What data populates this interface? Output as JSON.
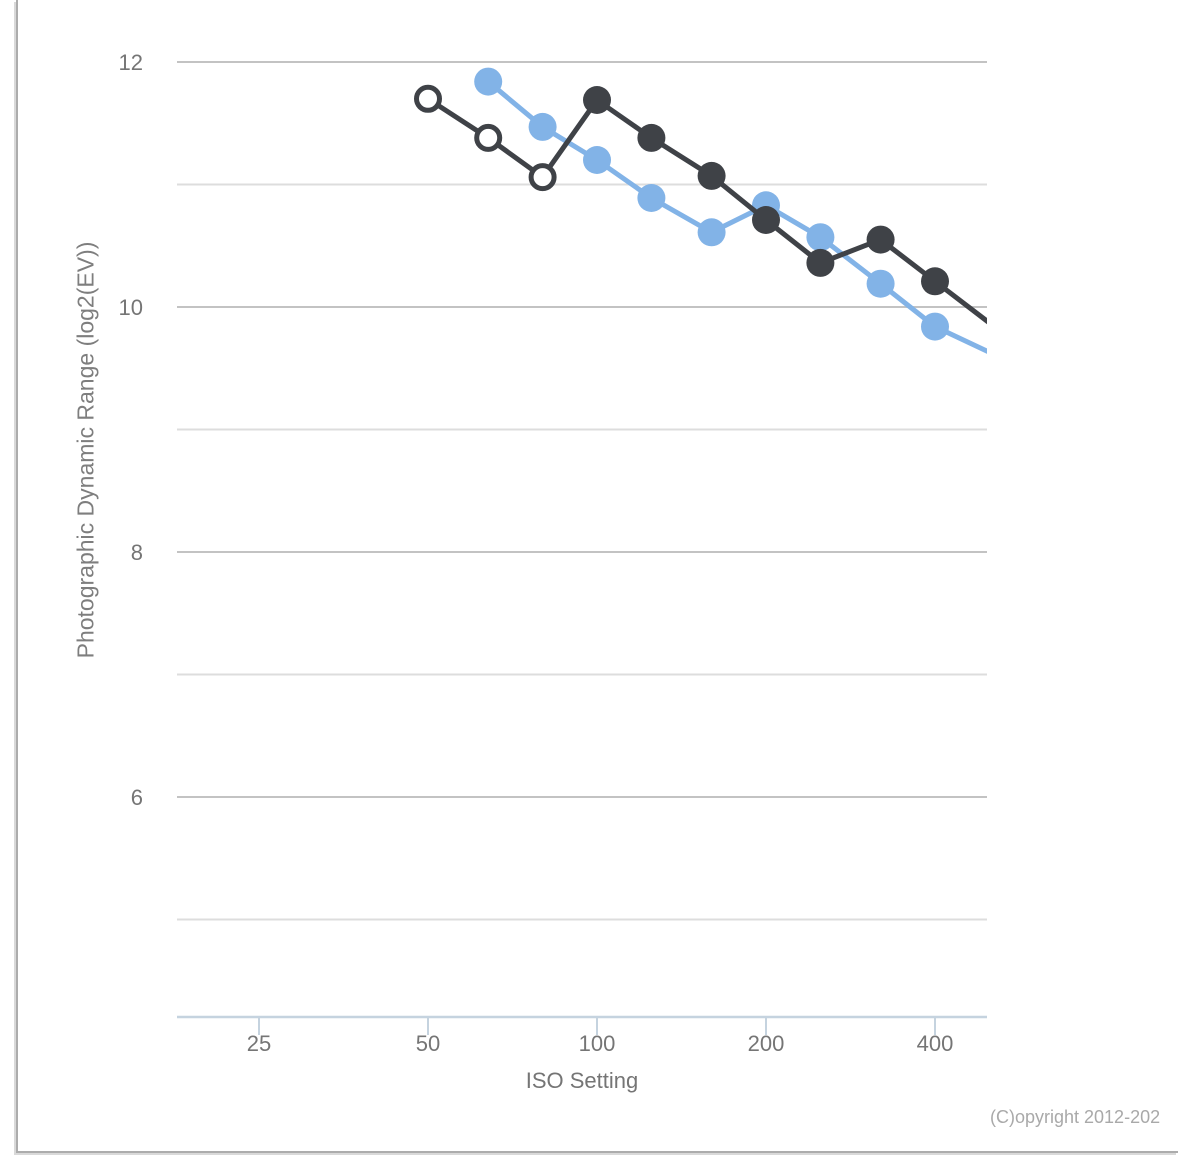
{
  "footer": {
    "copyright": "(C)opyright 2012-202"
  },
  "chart_data": {
    "type": "line",
    "title": "",
    "xlabel": "ISO Setting",
    "ylabel": "Photographic Dynamic Range (log2(EV))",
    "x_scale": "log2",
    "x_ticks": [
      25,
      50,
      100,
      200,
      400
    ],
    "x_range": [
      18,
      495
    ],
    "y_range": [
      4.2,
      12.35
    ],
    "grid": "horizontal-only",
    "legend": "none",
    "y_gridlines": [
      {
        "value": 12,
        "label": "12"
      },
      {
        "value": 11,
        "label": ""
      },
      {
        "value": 10,
        "label": "10"
      },
      {
        "value": 9,
        "label": ""
      },
      {
        "value": 8,
        "label": "8"
      },
      {
        "value": 7,
        "label": ""
      },
      {
        "value": 6,
        "label": "6"
      },
      {
        "value": 5,
        "label": ""
      }
    ],
    "series": [
      {
        "id": "series-blue",
        "color": "#82b3e7",
        "marker_style": "filled-circle",
        "points": [
          [
            64,
            11.84,
            "filled"
          ],
          [
            80,
            11.47,
            "filled"
          ],
          [
            100,
            11.2,
            "filled"
          ],
          [
            125,
            10.89,
            "filled"
          ],
          [
            160,
            10.61,
            "filled"
          ],
          [
            200,
            10.83,
            "filled"
          ],
          [
            250,
            10.57,
            "filled"
          ],
          [
            320,
            10.19,
            "filled"
          ],
          [
            400,
            9.84,
            "filled"
          ],
          [
            500,
            9.63,
            "none"
          ]
        ]
      },
      {
        "id": "series-dark",
        "color": "#3f4247",
        "marker_style": "open-circle-below-base-iso",
        "points": [
          [
            50,
            11.7,
            "open"
          ],
          [
            64,
            11.38,
            "open"
          ],
          [
            80,
            11.06,
            "open"
          ],
          [
            100,
            11.69,
            "filled"
          ],
          [
            125,
            11.38,
            "filled"
          ],
          [
            160,
            11.07,
            "filled"
          ],
          [
            200,
            10.71,
            "filled"
          ],
          [
            250,
            10.36,
            "filled"
          ],
          [
            320,
            10.55,
            "filled"
          ],
          [
            400,
            10.21,
            "filled"
          ],
          [
            500,
            9.87,
            "none"
          ]
        ]
      }
    ],
    "colors": {
      "grid_major": "#c3c3c3",
      "grid_minor": "#dddddd",
      "axis_line": "#c5d3df",
      "tick_text": "#757575",
      "axis_title": "#7e7e7e"
    }
  }
}
